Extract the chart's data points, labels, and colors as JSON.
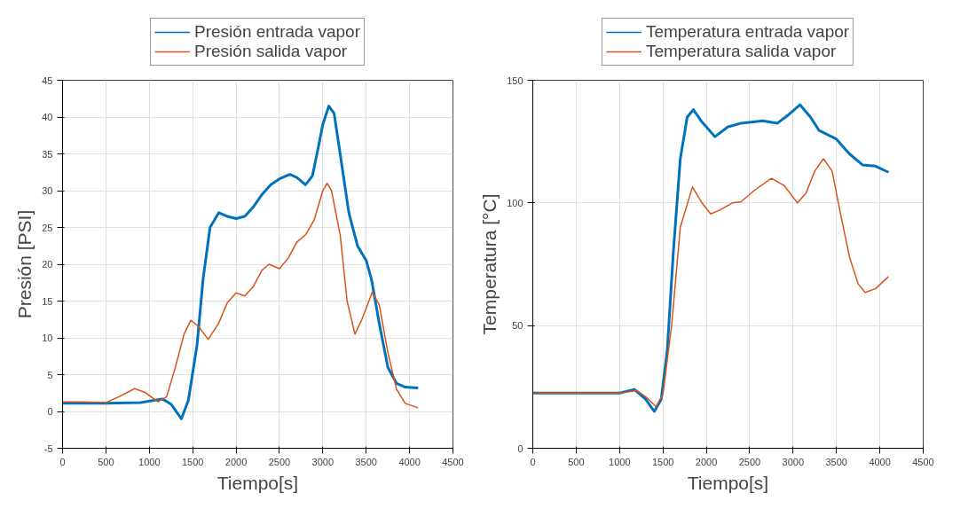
{
  "chart_data": [
    {
      "type": "line",
      "xlabel": "Tiempo[s]",
      "ylabel": "Presión [PSI]",
      "xlim": [
        0,
        4500
      ],
      "ylim": [
        -5,
        45
      ],
      "xticks": [
        0,
        500,
        1000,
        1500,
        2000,
        2500,
        3000,
        3500,
        4000,
        4500
      ],
      "yticks": [
        -5,
        0,
        5,
        10,
        15,
        20,
        25,
        30,
        35,
        40,
        45
      ],
      "grid": true,
      "legend": "top",
      "marker": "none",
      "line_style": "solid",
      "series": [
        {
          "name": "Presión entrada vapor",
          "color": "#0072bd",
          "x": [
            0,
            500,
            900,
            1150,
            1250,
            1370,
            1450,
            1550,
            1620,
            1700,
            1800,
            1900,
            2000,
            2100,
            2200,
            2300,
            2400,
            2500,
            2620,
            2700,
            2800,
            2880,
            2950,
            3000,
            3070,
            3130,
            3200,
            3300,
            3400,
            3500,
            3560,
            3650,
            3750,
            3850,
            3950,
            4100
          ],
          "values": [
            1.1,
            1.1,
            1.2,
            1.7,
            1.0,
            -1.0,
            1.5,
            9,
            18,
            25,
            27,
            26.5,
            26.2,
            26.5,
            27.8,
            29.5,
            30.8,
            31.6,
            32.2,
            31.8,
            30.8,
            32,
            36,
            39,
            41.5,
            40.5,
            35,
            27,
            22.5,
            20.5,
            18,
            12,
            6,
            3.8,
            3.3,
            3.2
          ]
        },
        {
          "name": "Presión salida vapor",
          "color": "#d95319",
          "x": [
            0,
            250,
            500,
            650,
            830,
            950,
            1100,
            1200,
            1300,
            1400,
            1480,
            1570,
            1680,
            1800,
            1900,
            2000,
            2100,
            2200,
            2300,
            2380,
            2500,
            2600,
            2700,
            2800,
            2900,
            3000,
            3050,
            3100,
            3200,
            3280,
            3370,
            3450,
            3570,
            3650,
            3750,
            3850,
            3950,
            4100
          ],
          "values": [
            1.3,
            1.3,
            1.2,
            2.0,
            3.1,
            2.6,
            1.3,
            2.0,
            6,
            10.5,
            12.4,
            11.5,
            9.8,
            12,
            14.8,
            16.1,
            15.7,
            17,
            19.2,
            20,
            19.4,
            20.8,
            23,
            24,
            26,
            30,
            31,
            30,
            24,
            15,
            10.5,
            12.5,
            16.2,
            14.5,
            8,
            3,
            1.1,
            0.5
          ]
        }
      ]
    },
    {
      "type": "line",
      "xlabel": "Tiempo[s]",
      "ylabel": "Temperatura [°C]",
      "xlim": [
        0,
        4500
      ],
      "ylim": [
        0,
        150
      ],
      "xticks": [
        0,
        500,
        1000,
        1500,
        2000,
        2500,
        3000,
        3500,
        4000,
        4500
      ],
      "yticks": [
        0,
        50,
        100,
        150
      ],
      "grid": true,
      "legend": "top",
      "marker": "none",
      "line_style": "solid",
      "series": [
        {
          "name": "Temperatura entrada vapor",
          "color": "#0072bd",
          "x": [
            0,
            1000,
            1170,
            1300,
            1400,
            1480,
            1550,
            1620,
            1700,
            1780,
            1850,
            1950,
            2100,
            2250,
            2400,
            2650,
            2820,
            2950,
            3080,
            3200,
            3300,
            3500,
            3650,
            3800,
            3950,
            4100
          ],
          "values": [
            22.5,
            22.5,
            24,
            20,
            15,
            20,
            40,
            80,
            118,
            135,
            138,
            133,
            127,
            131,
            132.5,
            133.5,
            132.5,
            136,
            140,
            135,
            129.5,
            126,
            120,
            115.5,
            115,
            112.5
          ]
        },
        {
          "name": "Temperatura salida vapor",
          "color": "#d95319",
          "x": [
            0,
            1000,
            1200,
            1300,
            1420,
            1500,
            1600,
            1700,
            1840,
            1950,
            2050,
            2150,
            2300,
            2400,
            2550,
            2750,
            2900,
            3050,
            3150,
            3250,
            3350,
            3450,
            3550,
            3650,
            3750,
            3830,
            3950,
            4100
          ],
          "values": [
            22.5,
            22.5,
            23.5,
            21,
            17,
            22,
            50,
            90,
            106.5,
            100,
            95.5,
            97,
            100,
            100.5,
            105,
            110,
            107,
            100,
            104,
            113,
            118,
            113,
            95,
            78,
            67,
            63.5,
            65,
            70
          ]
        }
      ]
    }
  ]
}
